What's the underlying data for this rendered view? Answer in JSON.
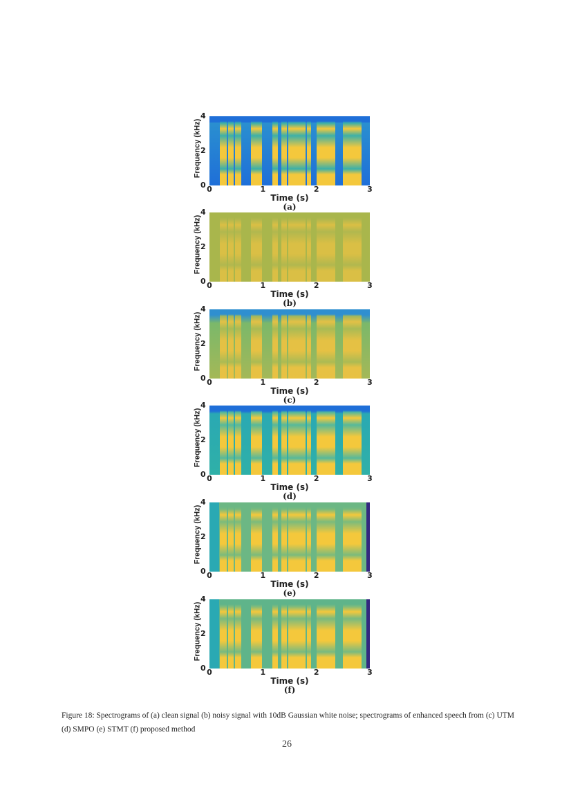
{
  "figure": {
    "y_label": "Frequency (kHz)",
    "x_label": "Time (s)",
    "y_ticks": [
      "0",
      "2",
      "4"
    ],
    "x_ticks": [
      "0",
      "1",
      "2",
      "3"
    ],
    "panels": [
      {
        "label": "(a)",
        "style": "clean"
      },
      {
        "label": "(b)",
        "style": "noisy"
      },
      {
        "label": "(c)",
        "style": "utm"
      },
      {
        "label": "(d)",
        "style": "smpo"
      },
      {
        "label": "(e)",
        "style": "stmt"
      },
      {
        "label": "(f)",
        "style": "proposed"
      }
    ]
  },
  "caption": "Figure 18: Spectrograms of (a) clean signal (b) noisy signal with 10dB Gaussian white noise; spectrograms of enhanced speech from (c) UTM (d) SMPO (e) STMT (f) proposed method",
  "page_number": "26",
  "colors": {
    "blue": "#1f6fd8",
    "teal": "#2aa9b3",
    "yellow": "#f4c83c",
    "olive": "#a9b64c",
    "purple": "#33287f"
  }
}
